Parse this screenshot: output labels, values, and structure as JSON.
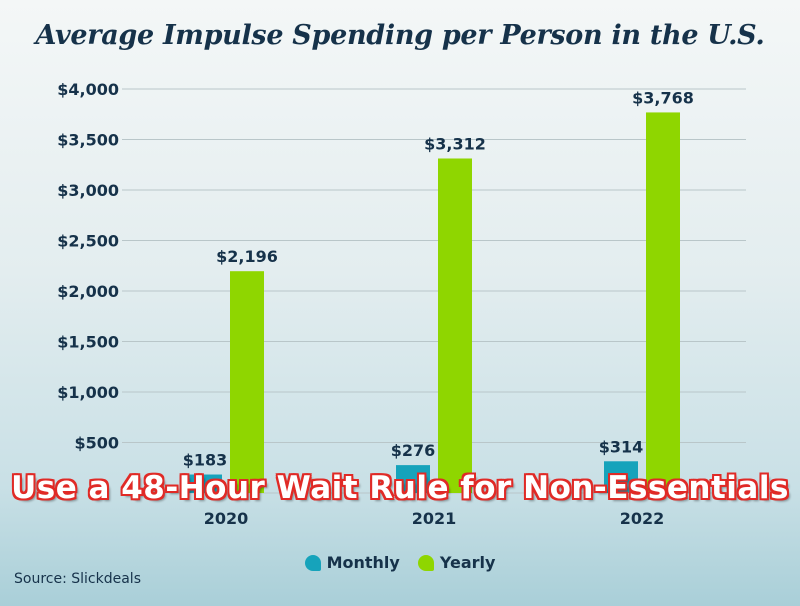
{
  "colors": {
    "monthly": "#16a3bb",
    "yearly": "#8fd600",
    "text": "#16324a",
    "grid": "#b9c6c9",
    "overlay_text": "#ffffff",
    "overlay_stroke": "#e02a26"
  },
  "overlay_text": "Use a 48-Hour Wait Rule for Non-Essentials",
  "source": "Source: Slickdeals",
  "chart_data": {
    "type": "bar",
    "title": "Average Impulse Spending per Person in the U.S.",
    "xlabel": "",
    "ylabel": "",
    "categories": [
      "2020",
      "2021",
      "2022"
    ],
    "series": [
      {
        "name": "Monthly",
        "values": [
          183,
          276,
          314
        ],
        "labels": [
          "$183",
          "$276",
          "$314"
        ]
      },
      {
        "name": "Yearly",
        "values": [
          2196,
          3312,
          3768
        ],
        "labels": [
          "$2,196",
          "$3,312",
          "$3,768"
        ]
      }
    ],
    "ylim": [
      0,
      4000
    ],
    "yticks": [
      0,
      500,
      1000,
      1500,
      2000,
      2500,
      3000,
      3500,
      4000
    ],
    "ytick_labels": [
      "",
      "$500",
      "$1,000",
      "$1,500",
      "$2,000",
      "$2,500",
      "$3,000",
      "$3,500",
      "$4,000"
    ],
    "grid": true,
    "legend_position": "bottom"
  }
}
